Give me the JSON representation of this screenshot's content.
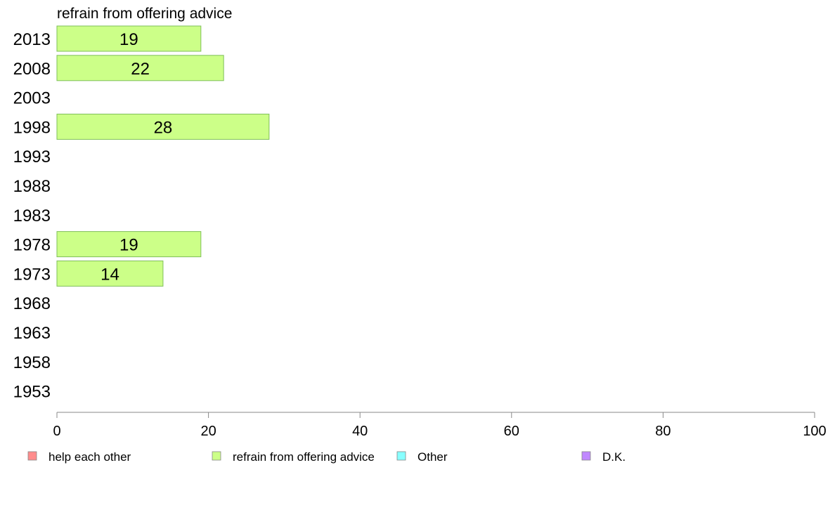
{
  "chart_data": {
    "type": "bar",
    "orientation": "horizontal",
    "title": "refrain from offering advice",
    "categories": [
      "2013",
      "2008",
      "2003",
      "1998",
      "1993",
      "1988",
      "1983",
      "1978",
      "1973",
      "1968",
      "1963",
      "1958",
      "1953"
    ],
    "series": [
      {
        "name": "refrain from offering advice",
        "color": "#ccff88",
        "values": [
          19,
          22,
          null,
          28,
          null,
          null,
          null,
          19,
          14,
          null,
          null,
          null,
          null
        ]
      }
    ],
    "bar_labels": [
      "19",
      "22",
      "",
      "28",
      "",
      "",
      "",
      "19",
      "14",
      "",
      "",
      "",
      ""
    ],
    "xlim": [
      0,
      100
    ],
    "xticks": [
      0,
      20,
      40,
      60,
      80,
      100
    ],
    "xtick_labels": [
      "0",
      "20",
      "40",
      "60",
      "80",
      "100"
    ],
    "legend": {
      "placement": "bottom",
      "entries": [
        {
          "label": "help each other",
          "color": "#ff8c8c"
        },
        {
          "label": "refrain from offering advice",
          "color": "#ccff88"
        },
        {
          "label": "Other",
          "color": "#88ffff"
        },
        {
          "label": "D.K.",
          "color": "#c088ff"
        }
      ]
    },
    "grid": false
  }
}
